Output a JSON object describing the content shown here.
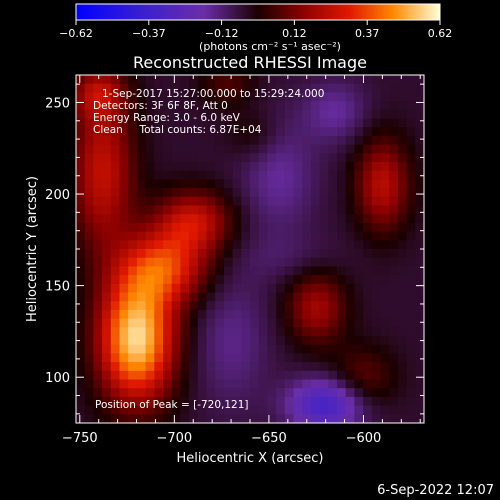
{
  "colorbar": {
    "ticks": [
      "-0.62",
      "-0.37",
      "-0.12",
      "0.12",
      "0.37",
      "0.62"
    ],
    "units_label": "(photons cm⁻² s⁻¹ asec⁻²)",
    "range": [
      -0.62,
      0.62
    ]
  },
  "annotations": {
    "time": "1-Sep-2017 15:27:00.000 to 15:29:24.000",
    "detectors": "Detectors: 3F 6F 8F, Att 0",
    "energy": "Energy Range: 3.0 - 6.0 keV",
    "method": "Clean     Total counts: 6.87E+04",
    "peak": "Position of Peak = [-720,121]"
  },
  "footer_date": "6-Sep-2022 12:07",
  "chart_data": {
    "type": "heatmap",
    "title": "Reconstructed RHESSI Image",
    "xlabel": "Heliocentric X (arcsec)",
    "ylabel": "Heliocentric Y (arcsec)",
    "xlim": [
      -752,
      -568
    ],
    "ylim": [
      75,
      265
    ],
    "xticks": [
      -750,
      -700,
      -650,
      -600
    ],
    "yticks": [
      100,
      150,
      200,
      250
    ],
    "sources": [
      {
        "x": -720,
        "y": 121,
        "sx": 14,
        "sy": 24,
        "amp": 0.62
      },
      {
        "x": -705,
        "y": 160,
        "sx": 16,
        "sy": 14,
        "amp": 0.36
      },
      {
        "x": -690,
        "y": 185,
        "sx": 14,
        "sy": 12,
        "amp": 0.3
      },
      {
        "x": -738,
        "y": 212,
        "sx": 12,
        "sy": 30,
        "amp": 0.3
      },
      {
        "x": -740,
        "y": 255,
        "sx": 10,
        "sy": 10,
        "amp": 0.22
      },
      {
        "x": -625,
        "y": 138,
        "sx": 11,
        "sy": 14,
        "amp": 0.24
      },
      {
        "x": -590,
        "y": 205,
        "sx": 10,
        "sy": 18,
        "amp": 0.28
      },
      {
        "x": -672,
        "y": 260,
        "sx": 10,
        "sy": 8,
        "amp": 0.12
      },
      {
        "x": -600,
        "y": 100,
        "sx": 12,
        "sy": 12,
        "amp": 0.14
      },
      {
        "x": -658,
        "y": 232,
        "sx": 10,
        "sy": 10,
        "amp": 0.08
      },
      {
        "x": -620,
        "y": 85,
        "sx": 14,
        "sy": 10,
        "amp": -0.3
      },
      {
        "x": -645,
        "y": 210,
        "sx": 14,
        "sy": 22,
        "amp": -0.12
      },
      {
        "x": -615,
        "y": 245,
        "sx": 12,
        "sy": 12,
        "amp": -0.12
      },
      {
        "x": -670,
        "y": 120,
        "sx": 14,
        "sy": 26,
        "amp": -0.1
      },
      {
        "x": -640,
        "y": 165,
        "sx": 20,
        "sy": 10,
        "amp": -0.05
      }
    ],
    "peak": {
      "x": -720,
      "y": 121
    }
  }
}
